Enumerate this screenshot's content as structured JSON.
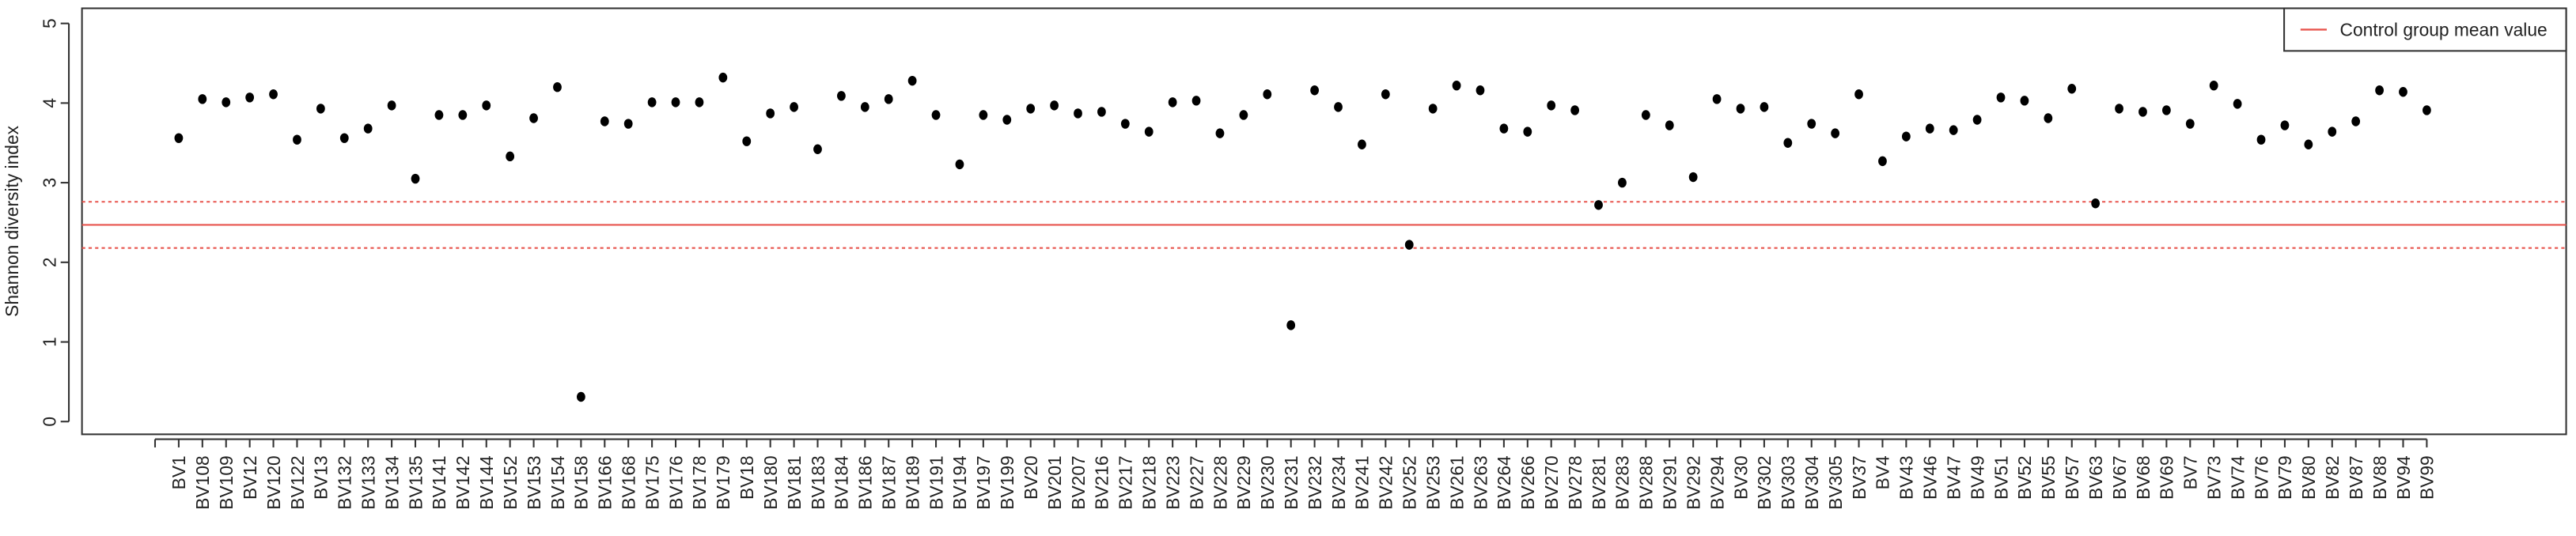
{
  "chart_data": {
    "type": "dot",
    "y_label": "Shannon diversity index",
    "categories": [
      "BV1",
      "BV108",
      "BV109",
      "BV12",
      "BV120",
      "BV122",
      "BV13",
      "BV132",
      "BV133",
      "BV134",
      "BV135",
      "BV141",
      "BV142",
      "BV144",
      "BV152",
      "BV153",
      "BV154",
      "BV158",
      "BV166",
      "BV168",
      "BV175",
      "BV176",
      "BV178",
      "BV179",
      "BV18",
      "BV180",
      "BV181",
      "BV183",
      "BV184",
      "BV186",
      "BV187",
      "BV189",
      "BV191",
      "BV194",
      "BV197",
      "BV199",
      "BV20",
      "BV201",
      "BV207",
      "BV216",
      "BV217",
      "BV218",
      "BV223",
      "BV227",
      "BV228",
      "BV229",
      "BV230",
      "BV231",
      "BV232",
      "BV234",
      "BV241",
      "BV242",
      "BV252",
      "BV253",
      "BV261",
      "BV263",
      "BV264",
      "BV266",
      "BV270",
      "BV278",
      "BV281",
      "BV283",
      "BV288",
      "BV291",
      "BV292",
      "BV294",
      "BV30",
      "BV302",
      "BV303",
      "BV304",
      "BV305",
      "BV37",
      "BV4",
      "BV43",
      "BV46",
      "BV47",
      "BV49",
      "BV51",
      "BV52",
      "BV55",
      "BV57",
      "BV63",
      "BV67",
      "BV68",
      "BV69",
      "BV7",
      "BV73",
      "BV74",
      "BV76",
      "BV79",
      "BV80",
      "BV82",
      "BV87",
      "BV88",
      "BV94",
      "BV99"
    ],
    "values": [
      3.56,
      4.05,
      4.01,
      4.07,
      4.11,
      3.54,
      3.93,
      3.56,
      3.68,
      3.97,
      3.05,
      3.85,
      3.85,
      3.97,
      3.33,
      3.81,
      4.2,
      0.31,
      3.77,
      3.74,
      4.01,
      4.01,
      4.01,
      4.32,
      3.52,
      3.87,
      3.95,
      3.42,
      4.09,
      3.95,
      4.05,
      4.28,
      3.85,
      3.23,
      3.85,
      3.79,
      3.93,
      3.97,
      3.87,
      3.89,
      3.74,
      3.64,
      4.01,
      4.03,
      3.62,
      3.85,
      4.11,
      1.21,
      4.16,
      3.95,
      3.48,
      4.11,
      2.22,
      3.93,
      4.22,
      4.16,
      3.68,
      3.64,
      3.97,
      3.91,
      2.72,
      3.0,
      3.85,
      3.72,
      3.07,
      4.05,
      3.93,
      3.95,
      3.5,
      3.74,
      3.62,
      4.11,
      3.27,
      3.58,
      3.68,
      3.66,
      3.79,
      4.07,
      4.03,
      3.81,
      4.18,
      2.74,
      3.93,
      3.89,
      3.91,
      3.74,
      4.22,
      3.99,
      3.54,
      3.72,
      3.48,
      3.64,
      3.77,
      4.16,
      4.14,
      3.91
    ],
    "color": "#000000",
    "ylim": [
      -0.16,
      5.19
    ],
    "yticks": [
      0,
      1,
      2,
      3,
      4,
      5
    ],
    "reference_lines": [
      {
        "name": "Control group mean value",
        "value": 2.47,
        "color": "#e8554e",
        "style": "solid"
      },
      {
        "value": 2.76,
        "color": "#e8554e",
        "style": "dotted"
      },
      {
        "value": 2.18,
        "color": "#e8554e",
        "style": "dotted"
      }
    ],
    "legend": "top-right"
  }
}
